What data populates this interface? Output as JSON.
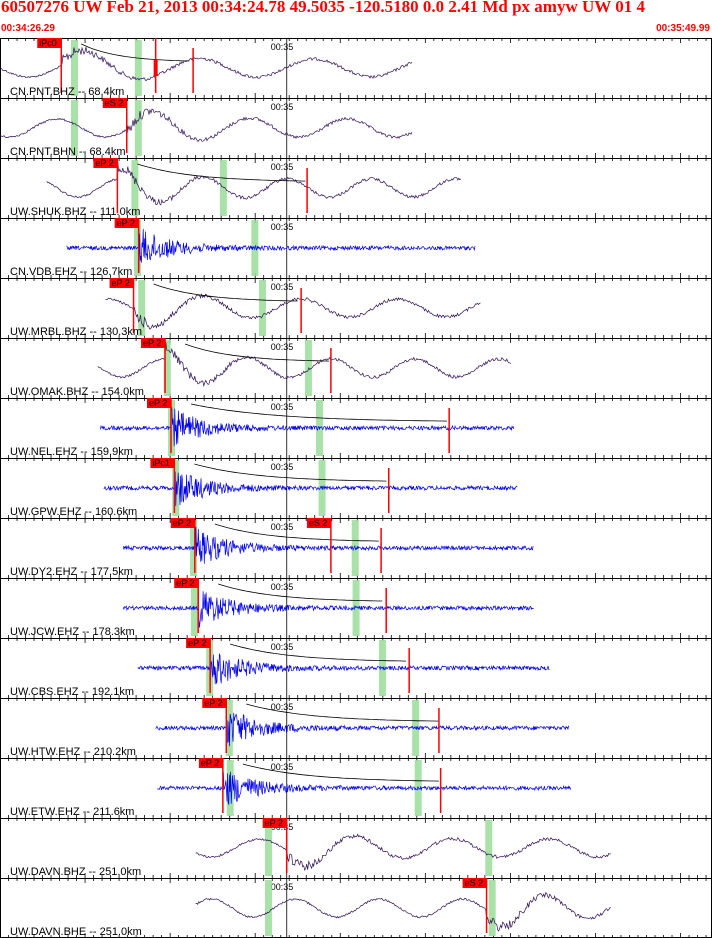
{
  "header": {
    "title": "60507276 UW Feb 21, 2013 00:34:24.78   49.5035 -120.5180  0.0 2.41 Md px amyw UW 01   4",
    "start_time": "00:34:26.29",
    "end_time": "00:35:49.99"
  },
  "colors": {
    "header_text": "#ff0000",
    "trace_broadband": "#2e0e55",
    "trace_short_period": "#0000ee",
    "pick_box": "#ff0000",
    "window": "#99dd99",
    "tick_mark": "#ff0000"
  },
  "chart_data": {
    "type": "line",
    "title": "60507276 UW Feb 21, 2013 00:34:24.78   49.5035 -120.5180  0.0 2.41 Md px amyw UW 01   4",
    "xlabel": "",
    "ylabel": "",
    "xlim": [
      0,
      83.7
    ],
    "minute_mark": "00:35",
    "minute_mark_x": 33.71,
    "series": [
      {
        "name": "CN.PNT.BHZ -- 68.4km",
        "kind": "broadband",
        "start": 0,
        "end": 48.5,
        "picks": [
          {
            "label": "iPc0",
            "x": 7.2
          },
          {
            "label": "",
            "x": 18.3
          }
        ],
        "green": [
          8.7,
          16.2
        ],
        "coda_end": 22.7
      },
      {
        "name": "CN.PNT.BHN -- 68.4km",
        "kind": "broadband",
        "start": 0,
        "end": 48.5,
        "picks": [
          {
            "label": "eS 2",
            "x": 14.9
          }
        ],
        "green": [
          8.7,
          16.2
        ],
        "coda_end": 0
      },
      {
        "name": "UW.SHUK.BHZ -- 111.0km",
        "kind": "broadband",
        "start": 5.5,
        "end": 54.2,
        "picks": [
          {
            "label": "eP 2",
            "x": 13.8
          }
        ],
        "green": [
          15.8,
          26.2
        ],
        "coda_end": 36.1
      },
      {
        "name": "CN.VDB.EHZ -- 126.7km",
        "kind": "short",
        "start": 7.8,
        "end": 55.9,
        "picks": [
          {
            "label": "eP 2",
            "x": 16.3
          }
        ],
        "green": [
          16.1,
          29.9
        ],
        "coda_end": 0
      },
      {
        "name": "UW.MRBL.BHZ -- 130.3km",
        "kind": "broadband",
        "start": 12.4,
        "end": 56.6,
        "picks": [
          {
            "label": "eP 2",
            "x": 15.7
          }
        ],
        "green": [
          16.6,
          30.8
        ],
        "coda_end": 35.4
      },
      {
        "name": "UW.OMAK.BHZ -- 154.0km",
        "kind": "broadband",
        "start": 11.5,
        "end": 60.1,
        "picks": [
          {
            "label": "eP 2",
            "x": 19.4
          }
        ],
        "green": [
          19.6,
          36.2
        ],
        "coda_end": 38.9
      },
      {
        "name": "UW.NEL.EHZ -- 159.9km",
        "kind": "short",
        "start": 11.8,
        "end": 60.4,
        "picks": [
          {
            "label": "eP 2",
            "x": 20.1
          }
        ],
        "green": [
          20.1,
          37.5
        ],
        "coda_end": 52.8
      },
      {
        "name": "UW.GPW.EHZ -- 160.6km",
        "kind": "short",
        "start": 12.2,
        "end": 60.8,
        "picks": [
          {
            "label": "iPc1",
            "x": 20.5
          }
        ],
        "green": [
          20.6,
          37.8
        ],
        "coda_end": 45.7
      },
      {
        "name": "UW.DY2.EHZ -- 177.5km",
        "kind": "short",
        "start": 14.5,
        "end": 62.7,
        "picks": [
          {
            "label": "eP 2",
            "x": 22.9
          },
          {
            "label": "eS 2",
            "x": 38.9
          }
        ],
        "green": [
          22.7,
          41.7
        ],
        "coda_end": 44.8
      },
      {
        "name": "UW.JCW.EHZ -- 178.3km",
        "kind": "short",
        "start": 14.5,
        "end": 62.8,
        "picks": [
          {
            "label": "eP 2",
            "x": 23.3
          }
        ],
        "green": [
          22.8,
          41.8
        ],
        "coda_end": 45.4
      },
      {
        "name": "UW.CBS.EHZ -- 192.1km",
        "kind": "short",
        "start": 16.2,
        "end": 64.6,
        "picks": [
          {
            "label": "eP 2",
            "x": 24.7
          }
        ],
        "green": [
          24.6,
          44.9
        ],
        "coda_end": 48.1
      },
      {
        "name": "UW.HTW.EHZ -- 210.2km",
        "kind": "short",
        "start": 18.3,
        "end": 66.9,
        "picks": [
          {
            "label": "eP 2",
            "x": 26.6
          }
        ],
        "green": [
          26.9,
          48.8
        ],
        "coda_end": 51.6
      },
      {
        "name": "UW.ETW.EHZ -- 211.6km",
        "kind": "short",
        "start": 18.5,
        "end": 67.1,
        "picks": [
          {
            "label": "eP 2",
            "x": 26.2
          }
        ],
        "green": [
          27.0,
          49.1
        ],
        "coda_end": 51.8
      },
      {
        "name": "UW.DAVN.BHZ -- 251.0km",
        "kind": "broadband",
        "start": 23.0,
        "end": 71.8,
        "picks": [
          {
            "label": "eP 2",
            "x": 33.7
          }
        ],
        "green": [
          31.5,
          57.4
        ],
        "coda_end": 0
      },
      {
        "name": "UW.DAVN.BHE -- 251.0km",
        "kind": "broadband",
        "start": 23.0,
        "end": 71.8,
        "picks": [
          {
            "label": "eS 2",
            "x": 57.2
          }
        ],
        "green": [
          31.5,
          57.8
        ],
        "coda_end": 0
      }
    ]
  }
}
